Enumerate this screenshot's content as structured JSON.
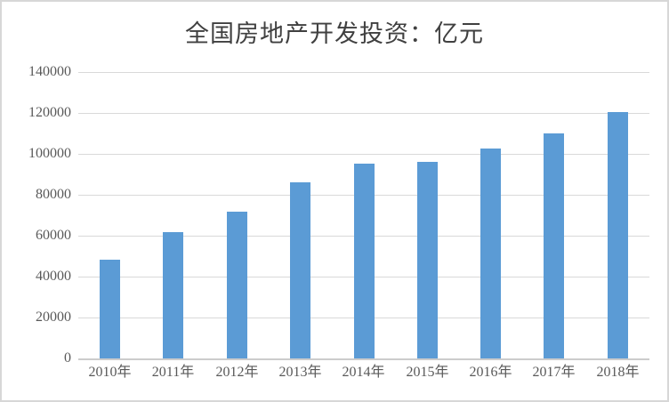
{
  "chart_data": {
    "type": "bar",
    "title": "全国房地产开发投资：亿元",
    "categories": [
      "2010年",
      "2011年",
      "2012年",
      "2013年",
      "2014年",
      "2015年",
      "2016年",
      "2017年",
      "2018年"
    ],
    "values": [
      48267,
      61740,
      71804,
      86013,
      95036,
      95979,
      102581,
      109799,
      120264
    ],
    "xlabel": "",
    "ylabel": "",
    "ylim": [
      0,
      140000
    ],
    "ytick_interval": 20000,
    "ytick_labels": [
      "0",
      "20000",
      "40000",
      "60000",
      "80000",
      "100000",
      "120000",
      "140000"
    ],
    "grid": true,
    "legend_position": "none"
  },
  "colors": {
    "bar": "#5b9bd5",
    "gridline": "#d9d9d9",
    "axis_line": "#cccccc",
    "tick_label": "#595959",
    "title": "#404040",
    "frame_border": "#d7d7d7",
    "background": "#ffffff"
  }
}
